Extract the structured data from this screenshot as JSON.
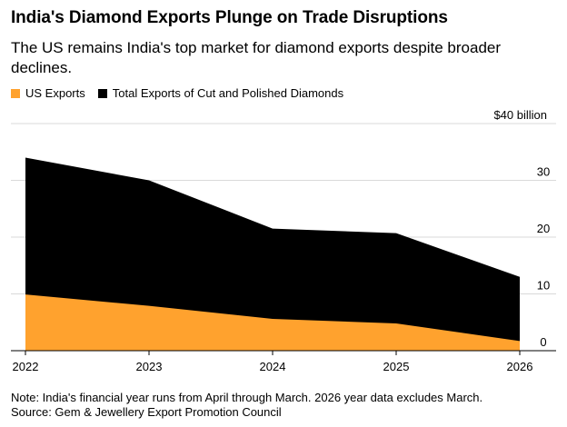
{
  "title": "India's Diamond Exports Plunge on Trade Disruptions",
  "subtitle": "The US remains India's top market for diamond exports despite broader declines.",
  "legend": {
    "us_label": "US Exports",
    "total_label": "Total Exports of Cut and Polished Diamonds"
  },
  "colors": {
    "us": "#FFA22E",
    "total": "#000000",
    "grid": "#d9d9d9"
  },
  "chart_data": {
    "type": "area",
    "title": "India's Diamond Exports Plunge on Trade Disruptions",
    "x": [
      "2022",
      "2023",
      "2024",
      "2025",
      "2026"
    ],
    "series": [
      {
        "name": "Total Exports of Cut and Polished Diamonds",
        "values": [
          34.0,
          30.0,
          21.5,
          20.7,
          13.0
        ]
      },
      {
        "name": "US Exports",
        "values": [
          9.9,
          7.9,
          5.6,
          4.8,
          1.7
        ]
      }
    ],
    "ylim": [
      0,
      40
    ],
    "yticks": [
      "0",
      "10",
      "20",
      "30",
      "$40 billion"
    ],
    "ytick_values": [
      0,
      10,
      20,
      30,
      40
    ],
    "grid": true,
    "legend_position": "top-left"
  },
  "note": {
    "line1": "Note: India's financial year runs from April through March. 2026 year data excludes March.",
    "line2": "Source: Gem & Jewellery Export Promotion Council"
  }
}
